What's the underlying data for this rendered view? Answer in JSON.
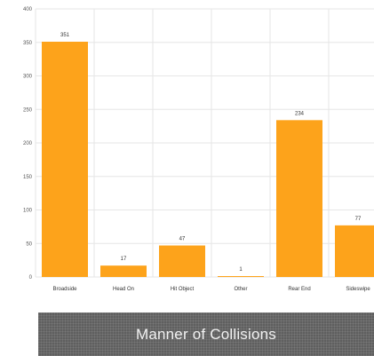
{
  "caption": "Manner of Collisions",
  "colors": {
    "bar": "#fda31b",
    "grid": "#e6e6e6",
    "banner": "#5f5f5f"
  },
  "chart_data": {
    "type": "bar",
    "categories": [
      "Broadside",
      "Head On",
      "Hit Object",
      "Other",
      "Rear End",
      "Sideswipe"
    ],
    "values": [
      351,
      17,
      47,
      1,
      234,
      77
    ],
    "data_labels": [
      "351",
      "17",
      "47",
      "1",
      "234",
      "77"
    ],
    "ylim": [
      0,
      400
    ],
    "yticks": [
      0,
      50,
      100,
      150,
      200,
      250,
      300,
      350,
      400
    ],
    "grid": true
  }
}
